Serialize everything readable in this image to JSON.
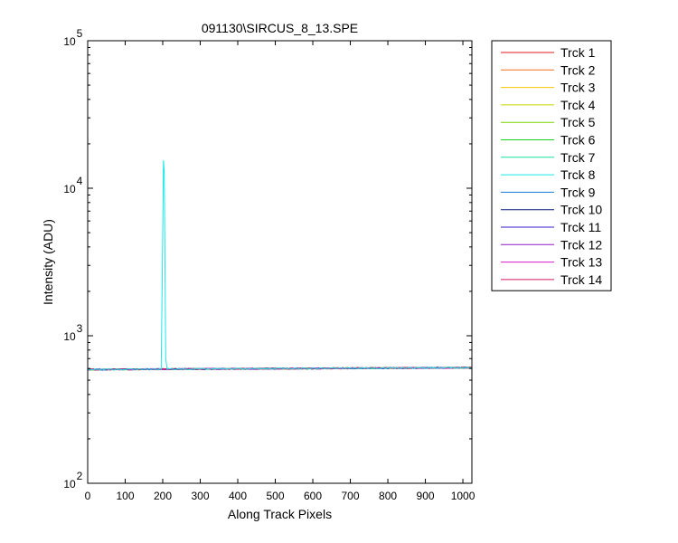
{
  "chart_data": {
    "type": "line",
    "title": "091130\\SIRCUS_8_13.SPE",
    "xlabel": "Along Track Pixels",
    "ylabel": "Intensity (ADU)",
    "xlim": [
      0,
      1024
    ],
    "ylim": [
      100,
      100000
    ],
    "y_scale": "log",
    "grid": false,
    "legend_position": "outside-right",
    "x_ticks": [
      "0",
      "100",
      "200",
      "300",
      "400",
      "500",
      "600",
      "700",
      "800",
      "900",
      "1000"
    ],
    "y_ticks": [
      {
        "base": "10",
        "exp": "2"
      },
      {
        "base": "10",
        "exp": "3"
      },
      {
        "base": "10",
        "exp": "4"
      },
      {
        "base": "10",
        "exp": "5"
      }
    ],
    "series": [
      {
        "name": "Trck 1",
        "color": "#e31a1c",
        "baseline": 590
      },
      {
        "name": "Trck 2",
        "color": "#f07020",
        "baseline": 590
      },
      {
        "name": "Trck 3",
        "color": "#f5c400",
        "baseline": 590
      },
      {
        "name": "Trck 4",
        "color": "#c8d400",
        "baseline": 590
      },
      {
        "name": "Trck 5",
        "color": "#7cd400",
        "baseline": 590
      },
      {
        "name": "Trck 6",
        "color": "#18d418",
        "baseline": 590
      },
      {
        "name": "Trck 7",
        "color": "#18e0a0",
        "baseline": 590
      },
      {
        "name": "Trck 8",
        "color": "#18e8e8",
        "baseline": 590,
        "peak": {
          "x": [
            196,
            200,
            202,
            204,
            206,
            208,
            212
          ],
          "y": [
            590,
            4800,
            15500,
            13000,
            3000,
            700,
            590
          ]
        }
      },
      {
        "name": "Trck 9",
        "color": "#1a7ad4",
        "baseline": 590
      },
      {
        "name": "Trck 10",
        "color": "#0a1a7a",
        "baseline": 590
      },
      {
        "name": "Trck 11",
        "color": "#3a18c8",
        "baseline": 590
      },
      {
        "name": "Trck 12",
        "color": "#9018c8",
        "baseline": 590
      },
      {
        "name": "Trck 13",
        "color": "#d818c8",
        "baseline": 590
      },
      {
        "name": "Trck 14",
        "color": "#d81860",
        "baseline": 590
      }
    ]
  }
}
